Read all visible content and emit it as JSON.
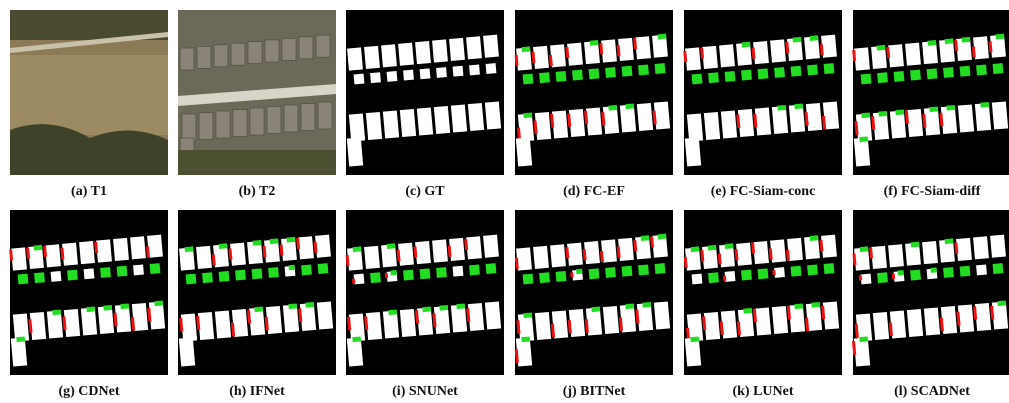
{
  "panels": [
    {
      "caption": "(a) T1"
    },
    {
      "caption": "(b) T2"
    },
    {
      "caption": "(c) GT"
    },
    {
      "caption": "(d) FC-EF"
    },
    {
      "caption": "(e) FC-Siam-conc"
    },
    {
      "caption": "(f) FC-Siam-diff"
    },
    {
      "caption": "(g) CDNet"
    },
    {
      "caption": "(h) IFNet"
    },
    {
      "caption": "(i) SNUNet"
    },
    {
      "caption": "(j) BITNet"
    },
    {
      "caption": "(k) LUNet"
    },
    {
      "caption": "(l) SCADNet"
    }
  ]
}
